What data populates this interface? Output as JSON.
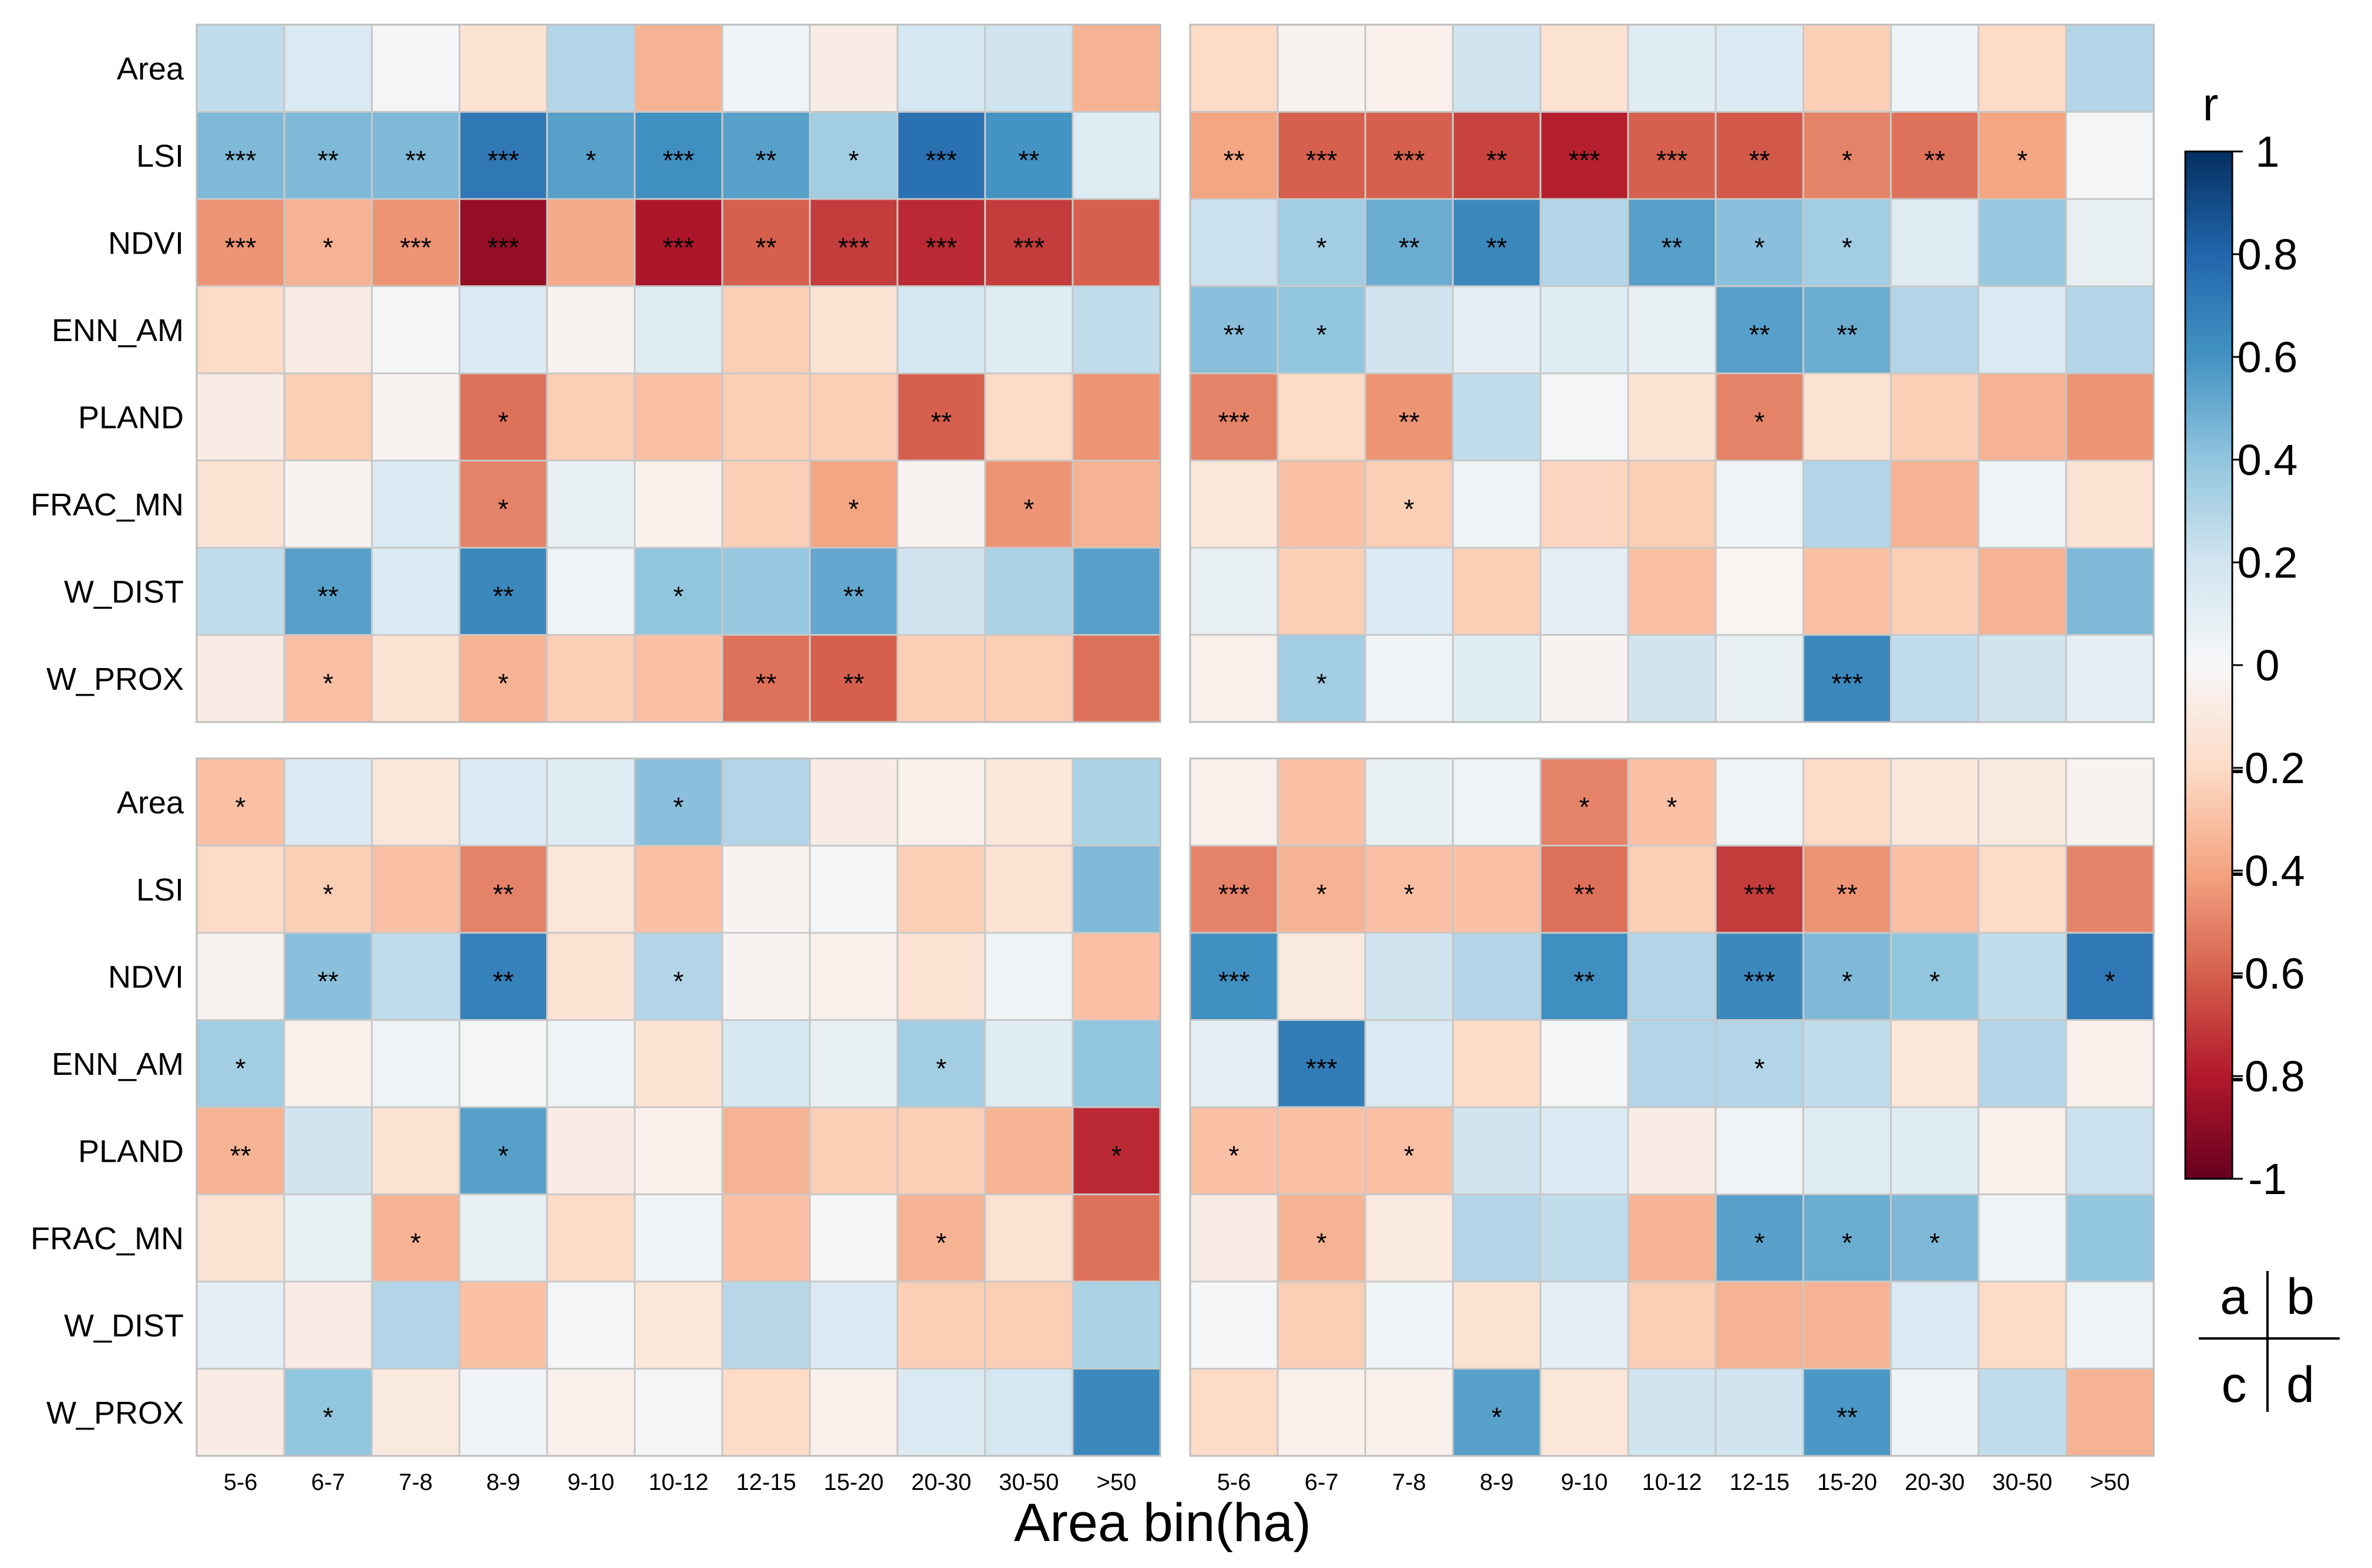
{
  "chart_data": {
    "type": "heatmap",
    "xlabel": "Area bin(ha)",
    "categories": [
      "5-6",
      "6-7",
      "7-8",
      "8-9",
      "9-10",
      "10-12",
      "12-15",
      "15-20",
      "20-30",
      "30-50",
      ">50"
    ],
    "rows": [
      "Area",
      "LSI",
      "NDVI",
      "ENN_AM",
      "PLAND",
      "FRAC_MN",
      "W_DIST",
      "W_PROX"
    ],
    "colorbar": {
      "title": "r",
      "range": [
        -1,
        1
      ],
      "ticks": [
        "1",
        "0.8",
        "0.6",
        "0.4",
        "0.2",
        "0",
        "-0.2",
        "-0.4",
        "-0.6",
        "-0.8",
        "-1"
      ]
    },
    "panel_key": {
      "a": "a",
      "b": "b",
      "c": "c",
      "d": "d"
    },
    "panels": [
      {
        "id": "a",
        "values": [
          [
            0.25,
            0.15,
            0.02,
            -0.15,
            0.3,
            -0.35,
            0.05,
            -0.08,
            0.18,
            0.2,
            -0.35
          ],
          [
            0.45,
            0.45,
            0.45,
            0.72,
            0.55,
            0.62,
            0.55,
            0.35,
            0.75,
            0.6,
            0.12
          ],
          [
            -0.45,
            -0.35,
            -0.45,
            -0.88,
            -0.38,
            -0.82,
            -0.6,
            -0.7,
            -0.75,
            -0.7,
            -0.6
          ],
          [
            -0.2,
            -0.08,
            0.02,
            0.15,
            -0.03,
            0.12,
            -0.25,
            -0.15,
            0.18,
            0.12,
            0.25
          ],
          [
            -0.08,
            -0.25,
            -0.03,
            -0.55,
            -0.25,
            -0.3,
            -0.25,
            -0.25,
            -0.6,
            -0.2,
            -0.45
          ],
          [
            -0.15,
            -0.03,
            0.15,
            -0.5,
            0.08,
            -0.05,
            -0.25,
            -0.4,
            -0.03,
            -0.45,
            -0.35
          ],
          [
            0.25,
            0.55,
            0.15,
            0.65,
            0.05,
            0.4,
            0.38,
            0.52,
            0.2,
            0.32,
            0.55
          ],
          [
            -0.08,
            -0.3,
            -0.15,
            -0.35,
            -0.25,
            -0.3,
            -0.55,
            -0.6,
            -0.25,
            -0.25,
            -0.55
          ]
        ],
        "sig": [
          [
            "",
            "",
            "",
            "",
            "",
            "",
            "",
            "",
            "",
            "",
            ""
          ],
          [
            "***",
            "**",
            "**",
            "***",
            "*",
            "***",
            "**",
            "*",
            "***",
            "**",
            ""
          ],
          [
            "***",
            "*",
            "***",
            "***",
            "",
            "***",
            "**",
            "***",
            "***",
            "***",
            ""
          ],
          [
            "",
            "",
            "",
            "",
            "",
            "",
            "",
            "",
            "",
            "",
            ""
          ],
          [
            "",
            "",
            "",
            "*",
            "",
            "",
            "",
            "",
            "**",
            "",
            ""
          ],
          [
            "",
            "",
            "",
            "*",
            "",
            "",
            "",
            "*",
            "",
            "*",
            ""
          ],
          [
            "",
            "**",
            "",
            "**",
            "",
            "*",
            "",
            "**",
            "",
            "",
            ""
          ],
          [
            "",
            "*",
            "",
            "*",
            "",
            "",
            "**",
            "**",
            "",
            "",
            ""
          ]
        ]
      },
      {
        "id": "b",
        "values": [
          [
            -0.2,
            -0.03,
            -0.05,
            0.2,
            -0.15,
            0.12,
            0.15,
            -0.25,
            0.05,
            -0.2,
            0.3
          ],
          [
            -0.4,
            -0.6,
            -0.6,
            -0.68,
            -0.78,
            -0.6,
            -0.62,
            -0.5,
            -0.55,
            -0.4,
            0.02
          ],
          [
            0.22,
            0.35,
            0.5,
            0.65,
            0.3,
            0.55,
            0.42,
            0.35,
            0.12,
            0.38,
            0.08
          ],
          [
            0.42,
            0.4,
            0.2,
            0.1,
            0.12,
            0.08,
            0.55,
            0.5,
            0.3,
            0.15,
            0.3
          ],
          [
            -0.5,
            -0.2,
            -0.45,
            0.25,
            0.02,
            -0.15,
            -0.5,
            -0.15,
            -0.25,
            -0.35,
            -0.45
          ],
          [
            -0.12,
            -0.3,
            -0.25,
            0.05,
            -0.22,
            -0.25,
            0.05,
            0.3,
            -0.35,
            0.05,
            -0.15
          ],
          [
            0.08,
            -0.25,
            0.15,
            -0.25,
            0.1,
            -0.3,
            -0.02,
            -0.3,
            -0.25,
            -0.35,
            0.45
          ],
          [
            -0.05,
            0.35,
            0.05,
            0.12,
            -0.03,
            0.2,
            0.08,
            0.65,
            0.25,
            0.2,
            0.1
          ]
        ],
        "sig": [
          [
            "",
            "",
            "",
            "",
            "",
            "",
            "",
            "",
            "",
            "",
            ""
          ],
          [
            "**",
            "***",
            "***",
            "**",
            "***",
            "***",
            "**",
            "*",
            "**",
            "*",
            ""
          ],
          [
            "",
            "*",
            "**",
            "**",
            "",
            "**",
            "*",
            "*",
            "",
            "",
            ""
          ],
          [
            "**",
            "*",
            "",
            "",
            "",
            "",
            "**",
            "**",
            "",
            "",
            ""
          ],
          [
            "***",
            "",
            "**",
            "",
            "",
            "",
            "*",
            "",
            "",
            "",
            ""
          ],
          [
            "",
            "",
            "*",
            "",
            "",
            "",
            "",
            "",
            "",
            "",
            ""
          ],
          [
            "",
            "",
            "",
            "",
            "",
            "",
            "",
            "",
            "",
            "",
            ""
          ],
          [
            "",
            "*",
            "",
            "",
            "",
            "",
            "",
            "***",
            "",
            "",
            ""
          ]
        ]
      },
      {
        "id": "c",
        "values": [
          [
            -0.3,
            0.15,
            -0.12,
            0.15,
            0.12,
            0.42,
            0.3,
            -0.08,
            -0.05,
            -0.12,
            0.32
          ],
          [
            -0.2,
            -0.25,
            -0.3,
            -0.5,
            -0.12,
            -0.3,
            -0.03,
            0.02,
            -0.25,
            -0.15,
            0.45
          ],
          [
            -0.03,
            0.42,
            0.25,
            0.68,
            -0.15,
            0.3,
            -0.03,
            -0.05,
            -0.15,
            0.05,
            -0.3
          ],
          [
            0.35,
            -0.05,
            0.05,
            0.02,
            0.05,
            -0.15,
            0.18,
            0.08,
            0.35,
            0.12,
            0.4
          ],
          [
            -0.35,
            0.2,
            -0.15,
            0.55,
            -0.08,
            -0.05,
            -0.35,
            -0.25,
            -0.25,
            -0.35,
            -0.75
          ],
          [
            -0.15,
            0.08,
            -0.35,
            0.08,
            -0.2,
            0.03,
            -0.3,
            0.02,
            -0.35,
            -0.15,
            -0.55
          ],
          [
            0.1,
            -0.08,
            0.3,
            -0.3,
            0.02,
            -0.12,
            0.28,
            0.15,
            -0.25,
            -0.25,
            0.32
          ],
          [
            -0.08,
            0.4,
            -0.1,
            0.03,
            -0.05,
            0.02,
            -0.2,
            -0.05,
            0.15,
            0.18,
            0.65
          ]
        ],
        "sig": [
          [
            "*",
            "",
            "",
            "",
            "",
            "*",
            "",
            "",
            "",
            "",
            ""
          ],
          [
            "",
            "*",
            "",
            "**",
            "",
            "",
            "",
            "",
            "",
            "",
            ""
          ],
          [
            "",
            "**",
            "",
            "**",
            "",
            "*",
            "",
            "",
            "",
            "",
            ""
          ],
          [
            "*",
            "",
            "",
            "",
            "",
            "",
            "",
            "",
            "*",
            "",
            ""
          ],
          [
            "**",
            "",
            "",
            "*",
            "",
            "",
            "",
            "",
            "",
            "",
            "*"
          ],
          [
            "",
            "",
            "*",
            "",
            "",
            "",
            "",
            "",
            "*",
            "",
            ""
          ],
          [
            "",
            "",
            "",
            "",
            "",
            "",
            "",
            "",
            "",
            "",
            ""
          ],
          [
            "",
            "*",
            "",
            "",
            "",
            "",
            "",
            "",
            "",
            "",
            ""
          ]
        ]
      },
      {
        "id": "d",
        "values": [
          [
            -0.05,
            -0.3,
            0.08,
            0.05,
            -0.5,
            -0.3,
            0.05,
            -0.2,
            -0.12,
            -0.1,
            -0.03
          ],
          [
            -0.5,
            -0.35,
            -0.3,
            -0.3,
            -0.55,
            -0.25,
            -0.7,
            -0.45,
            -0.3,
            -0.2,
            -0.5
          ],
          [
            0.62,
            -0.1,
            0.2,
            0.3,
            0.62,
            0.3,
            0.65,
            0.45,
            0.4,
            0.25,
            0.72
          ],
          [
            0.1,
            0.7,
            0.15,
            -0.2,
            0.02,
            0.3,
            0.3,
            0.25,
            -0.12,
            0.3,
            -0.05
          ],
          [
            -0.3,
            -0.3,
            -0.3,
            0.2,
            0.15,
            -0.08,
            0.03,
            0.12,
            0.12,
            -0.05,
            0.22
          ],
          [
            -0.08,
            -0.35,
            -0.1,
            0.3,
            0.25,
            -0.35,
            0.55,
            0.5,
            0.45,
            0.05,
            0.4
          ],
          [
            0.02,
            -0.25,
            0.05,
            -0.15,
            0.1,
            -0.25,
            -0.35,
            -0.35,
            0.15,
            -0.2,
            0.05
          ],
          [
            -0.2,
            -0.05,
            -0.05,
            0.55,
            -0.12,
            0.2,
            0.2,
            0.58,
            0.05,
            0.25,
            -0.35
          ]
        ],
        "sig": [
          [
            "",
            "",
            "",
            "",
            "*",
            "*",
            "",
            "",
            "",
            "",
            ""
          ],
          [
            "***",
            "*",
            "*",
            "",
            "**",
            "",
            "***",
            "**",
            "",
            "",
            ""
          ],
          [
            "***",
            "",
            "",
            "",
            "**",
            "",
            "***",
            "*",
            "*",
            "",
            "*"
          ],
          [
            "",
            "***",
            "",
            "",
            "",
            "",
            "*",
            "",
            "",
            "",
            ""
          ],
          [
            "*",
            "",
            "*",
            "",
            "",
            "",
            "",
            "",
            "",
            "",
            ""
          ],
          [
            "",
            "*",
            "",
            "",
            "",
            "",
            "*",
            "*",
            "*",
            "",
            ""
          ],
          [
            "",
            "",
            "",
            "",
            "",
            "",
            "",
            "",
            "",
            "",
            ""
          ],
          [
            "",
            "",
            "",
            "*",
            "",
            "",
            "",
            "**",
            "",
            "",
            ""
          ]
        ]
      }
    ]
  }
}
